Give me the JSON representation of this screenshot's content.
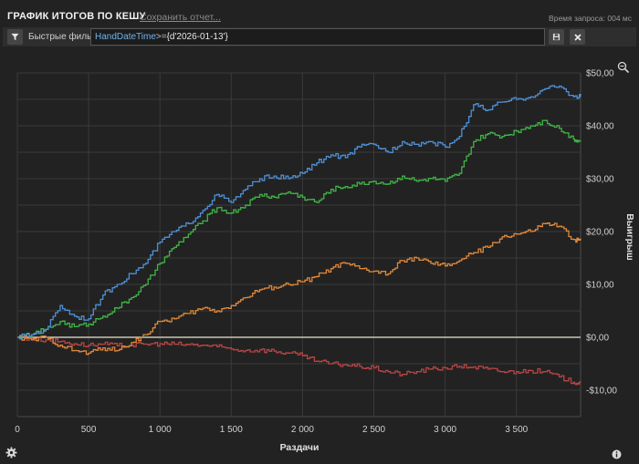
{
  "header": {
    "title": "ГРАФИК ИТОГОВ ПО КЕШУ",
    "save_link": "Сохранить отчет...",
    "query_time": "Время запроса: 004 мс"
  },
  "filter": {
    "label": "Быстрые фильтры",
    "field": "HandDateTime",
    "operator": ">=",
    "value": "{d'2026-01-13'}"
  },
  "icons": {
    "filter": "filter-icon",
    "save": "save-icon",
    "clear": "close-icon",
    "zoom": "zoom-icon",
    "settings": "gear-icon",
    "info": "info-icon"
  },
  "colors": {
    "background": "#222222",
    "grid": "#3a3a3a",
    "zero_line": "#e8e8d0",
    "blue": "#4f8fd6",
    "green": "#3fb547",
    "orange": "#e0883a",
    "red": "#b84545"
  },
  "chart_data": {
    "type": "line",
    "xlabel": "Раздачи",
    "ylabel": "Выигрыш",
    "xlim": [
      0,
      3950
    ],
    "ylim": [
      -15,
      50
    ],
    "x_ticks": [
      0,
      500,
      1000,
      1500,
      2000,
      2500,
      3000,
      3500
    ],
    "x_tick_labels": [
      "0",
      "500",
      "1 000",
      "1 500",
      "2 000",
      "2 500",
      "3 000",
      "3 500"
    ],
    "y_ticks": [
      50,
      40,
      30,
      20,
      10,
      0,
      -10
    ],
    "y_tick_labels": [
      "$50,00",
      "$40,00",
      "$30,00",
      "$20,00",
      "$10,00",
      "$0,00",
      "-$10,00"
    ],
    "grid": true,
    "series": [
      {
        "color": "blue",
        "values": [
          [
            0,
            0
          ],
          [
            100,
            0.5
          ],
          [
            200,
            1.5
          ],
          [
            300,
            6
          ],
          [
            400,
            4
          ],
          [
            500,
            3.5
          ],
          [
            600,
            8
          ],
          [
            700,
            10
          ],
          [
            800,
            12
          ],
          [
            900,
            14
          ],
          [
            1000,
            18
          ],
          [
            1100,
            20
          ],
          [
            1200,
            21.5
          ],
          [
            1300,
            24
          ],
          [
            1400,
            27
          ],
          [
            1500,
            25.5
          ],
          [
            1600,
            28
          ],
          [
            1700,
            30
          ],
          [
            1800,
            30.5
          ],
          [
            1900,
            30
          ],
          [
            2000,
            31
          ],
          [
            2100,
            33
          ],
          [
            2200,
            34.5
          ],
          [
            2300,
            34
          ],
          [
            2400,
            36
          ],
          [
            2500,
            36.5
          ],
          [
            2600,
            35
          ],
          [
            2700,
            37
          ],
          [
            2800,
            36.5
          ],
          [
            2900,
            37
          ],
          [
            3000,
            36
          ],
          [
            3100,
            38
          ],
          [
            3200,
            44
          ],
          [
            3300,
            43
          ],
          [
            3400,
            44.5
          ],
          [
            3500,
            45
          ],
          [
            3600,
            45.5
          ],
          [
            3700,
            47
          ],
          [
            3800,
            47.5
          ],
          [
            3900,
            45.5
          ],
          [
            3950,
            45.5
          ]
        ]
      },
      {
        "color": "green",
        "values": [
          [
            0,
            0
          ],
          [
            100,
            0.5
          ],
          [
            200,
            1.5
          ],
          [
            300,
            3
          ],
          [
            400,
            2
          ],
          [
            500,
            2.5
          ],
          [
            600,
            4
          ],
          [
            700,
            5.5
          ],
          [
            800,
            7.5
          ],
          [
            900,
            10
          ],
          [
            1000,
            14
          ],
          [
            1100,
            17
          ],
          [
            1200,
            19.5
          ],
          [
            1300,
            22
          ],
          [
            1400,
            24.5
          ],
          [
            1500,
            23.5
          ],
          [
            1600,
            25
          ],
          [
            1700,
            27
          ],
          [
            1800,
            26.5
          ],
          [
            1900,
            27.5
          ],
          [
            2000,
            26.5
          ],
          [
            2100,
            25.5
          ],
          [
            2200,
            28
          ],
          [
            2300,
            28.5
          ],
          [
            2400,
            29
          ],
          [
            2500,
            29.5
          ],
          [
            2600,
            29
          ],
          [
            2700,
            30.5
          ],
          [
            2800,
            29.5
          ],
          [
            2900,
            30
          ],
          [
            3000,
            29.5
          ],
          [
            3100,
            31
          ],
          [
            3200,
            37
          ],
          [
            3300,
            38.5
          ],
          [
            3400,
            38
          ],
          [
            3500,
            39
          ],
          [
            3600,
            40
          ],
          [
            3700,
            41
          ],
          [
            3800,
            39.5
          ],
          [
            3900,
            37.5
          ],
          [
            3950,
            37.2
          ]
        ]
      },
      {
        "color": "orange",
        "values": [
          [
            0,
            0
          ],
          [
            100,
            -0.5
          ],
          [
            200,
            0
          ],
          [
            300,
            -1.5
          ],
          [
            400,
            -2.5
          ],
          [
            500,
            -3
          ],
          [
            600,
            -2
          ],
          [
            700,
            -2.5
          ],
          [
            800,
            -1
          ],
          [
            900,
            0.5
          ],
          [
            1000,
            3
          ],
          [
            1100,
            3.5
          ],
          [
            1200,
            4.5
          ],
          [
            1300,
            5.5
          ],
          [
            1400,
            5
          ],
          [
            1500,
            6
          ],
          [
            1600,
            7.5
          ],
          [
            1700,
            9
          ],
          [
            1800,
            9.5
          ],
          [
            1900,
            10
          ],
          [
            2000,
            10.5
          ],
          [
            2100,
            11.5
          ],
          [
            2200,
            13
          ],
          [
            2300,
            14
          ],
          [
            2400,
            13
          ],
          [
            2500,
            12.5
          ],
          [
            2600,
            12
          ],
          [
            2700,
            14.5
          ],
          [
            2800,
            15
          ],
          [
            2900,
            14
          ],
          [
            3000,
            13.5
          ],
          [
            3100,
            14.5
          ],
          [
            3200,
            16
          ],
          [
            3300,
            17
          ],
          [
            3400,
            19
          ],
          [
            3500,
            19.5
          ],
          [
            3600,
            20
          ],
          [
            3700,
            21.5
          ],
          [
            3800,
            21
          ],
          [
            3900,
            18.5
          ],
          [
            3950,
            18.3
          ]
        ]
      },
      {
        "color": "red",
        "values": [
          [
            0,
            0
          ],
          [
            100,
            -0.3
          ],
          [
            200,
            -0.5
          ],
          [
            300,
            -0.8
          ],
          [
            400,
            -1.2
          ],
          [
            500,
            -1.5
          ],
          [
            600,
            -1.3
          ],
          [
            700,
            -1.6
          ],
          [
            800,
            -1.5
          ],
          [
            900,
            -1.3
          ],
          [
            1000,
            -1.2
          ],
          [
            1100,
            -1.3
          ],
          [
            1200,
            -1.4
          ],
          [
            1300,
            -1.5
          ],
          [
            1400,
            -1.8
          ],
          [
            1500,
            -2.2
          ],
          [
            1600,
            -2.5
          ],
          [
            1700,
            -2.4
          ],
          [
            1800,
            -2.6
          ],
          [
            1900,
            -3
          ],
          [
            2000,
            -3.5
          ],
          [
            2100,
            -4.5
          ],
          [
            2200,
            -5
          ],
          [
            2300,
            -5.2
          ],
          [
            2400,
            -5.5
          ],
          [
            2500,
            -5.8
          ],
          [
            2600,
            -6.5
          ],
          [
            2700,
            -7
          ],
          [
            2800,
            -6.5
          ],
          [
            2900,
            -6
          ],
          [
            3000,
            -5.8
          ],
          [
            3100,
            -5.5
          ],
          [
            3200,
            -5.6
          ],
          [
            3300,
            -6
          ],
          [
            3400,
            -6.5
          ],
          [
            3500,
            -6.5
          ],
          [
            3600,
            -6.3
          ],
          [
            3700,
            -6.5
          ],
          [
            3800,
            -7.5
          ],
          [
            3900,
            -8.5
          ],
          [
            3950,
            -8.5
          ]
        ]
      }
    ]
  }
}
